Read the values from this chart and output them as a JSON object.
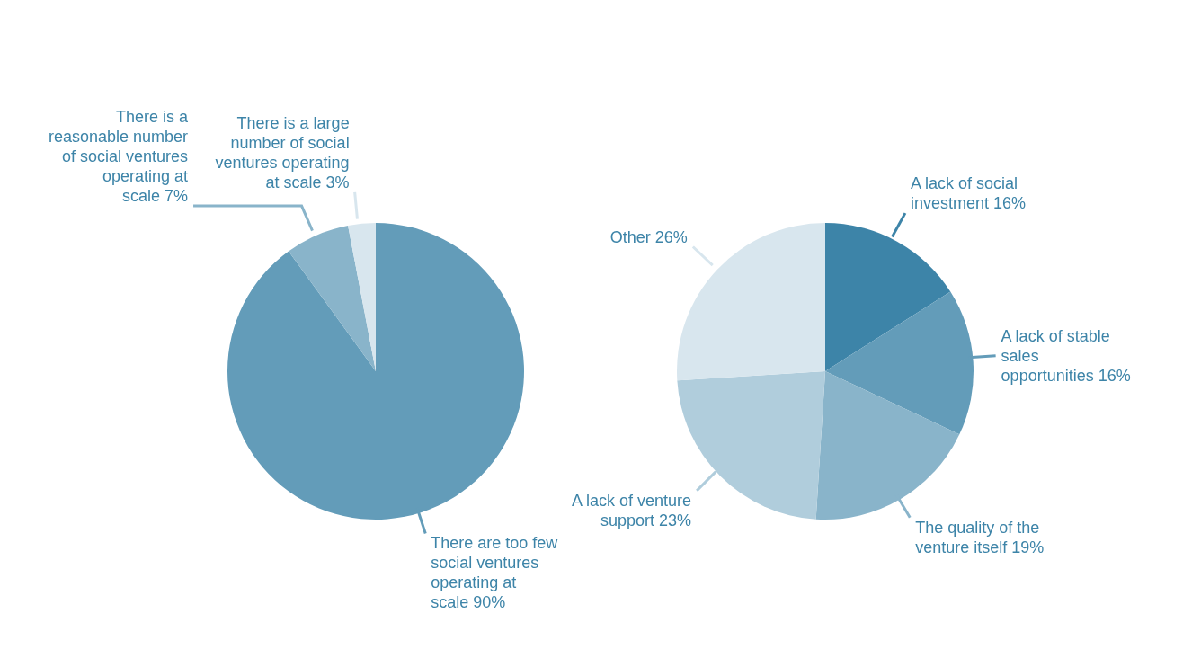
{
  "chart_data": [
    {
      "type": "pie",
      "categories": [
        "There are too few social ventures operating at scale",
        "There is a reasonable number of social ventures operating at scale",
        "There is a large number of social ventures operating at scale"
      ],
      "values": [
        90,
        7,
        3
      ],
      "value_labels": [
        "90%",
        "7%",
        "3%"
      ],
      "colors": [
        "#639cb9",
        "#89b4ca",
        "#d8e6ee"
      ],
      "legend": false
    },
    {
      "type": "pie",
      "categories": [
        "A lack of social investment",
        "A lack of stable sales opportunities",
        "The quality of the venture itself",
        "A lack of venture support",
        "Other"
      ],
      "values": [
        16,
        16,
        19,
        23,
        26
      ],
      "value_labels": [
        "16%",
        "16%",
        "19%",
        "23%",
        "26%"
      ],
      "colors": [
        "#3d84a8",
        "#639cb9",
        "#89b4ca",
        "#b0cddc",
        "#d8e6ee"
      ],
      "legend": false
    }
  ]
}
